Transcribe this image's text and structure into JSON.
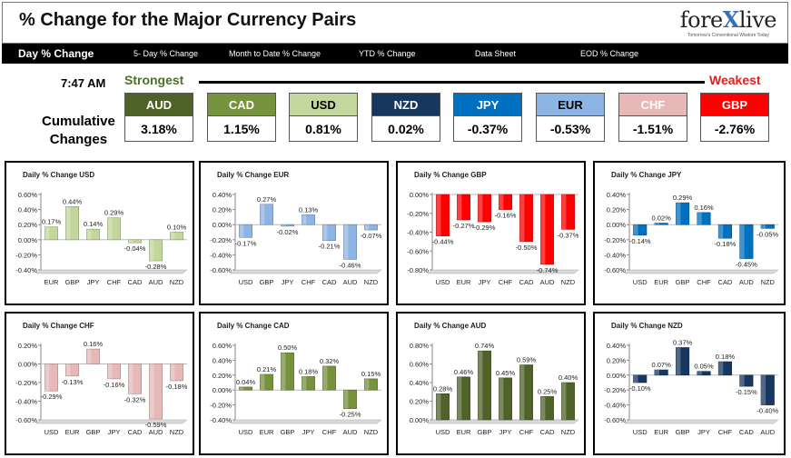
{
  "header": {
    "title": "% Change for the Major Currency Pairs",
    "logo_name": "forexlive-logo"
  },
  "nav": [
    {
      "label": "Day % Change",
      "active": true
    },
    {
      "label": "5- Day % Change",
      "active": false
    },
    {
      "label": "Month to Date % Change",
      "active": false
    },
    {
      "label": "YTD % Change",
      "active": false
    },
    {
      "label": "Data Sheet",
      "active": false
    },
    {
      "label": "EOD % Change",
      "active": false
    }
  ],
  "summary": {
    "time": "7:47 AM",
    "strongest_label": "Strongest",
    "weakest_label": "Weakest",
    "cumulative_label_1": "Cumulative",
    "cumulative_label_2": "Changes",
    "currencies": [
      {
        "code": "AUD",
        "value": "3.18%",
        "bg": "#4f6228",
        "fg": "#ffffff"
      },
      {
        "code": "CAD",
        "value": "1.15%",
        "bg": "#76923c",
        "fg": "#ffffff"
      },
      {
        "code": "USD",
        "value": "0.81%",
        "bg": "#c3d69b",
        "fg": "#000000"
      },
      {
        "code": "NZD",
        "value": "0.02%",
        "bg": "#17375e",
        "fg": "#ffffff"
      },
      {
        "code": "JPY",
        "value": "-0.37%",
        "bg": "#0070c0",
        "fg": "#ffffff"
      },
      {
        "code": "EUR",
        "value": "-0.53%",
        "bg": "#8eb4e3",
        "fg": "#000000"
      },
      {
        "code": "CHF",
        "value": "-1.51%",
        "bg": "#e6b9b8",
        "fg": "#ffffff"
      },
      {
        "code": "GBP",
        "value": "-2.76%",
        "bg": "#ff0000",
        "fg": "#ffffff"
      }
    ]
  },
  "chart_data": [
    {
      "type": "bar",
      "title": "Daily % Change USD",
      "categories": [
        "EUR",
        "GBP",
        "JPY",
        "CHF",
        "CAD",
        "AUD",
        "NZD"
      ],
      "values": [
        0.17,
        0.44,
        0.14,
        0.29,
        -0.04,
        -0.28,
        0.1
      ],
      "ticks": [
        0.6,
        0.4,
        0.2,
        0.0,
        -0.2,
        -0.4
      ],
      "ylim": [
        -0.4,
        0.6
      ],
      "color": "#c3d69b"
    },
    {
      "type": "bar",
      "title": "Daily % Change EUR",
      "categories": [
        "USD",
        "GBP",
        "JPY",
        "CHF",
        "CAD",
        "AUD",
        "NZD"
      ],
      "values": [
        -0.17,
        0.27,
        -0.02,
        0.13,
        -0.21,
        -0.46,
        -0.07
      ],
      "ticks": [
        0.4,
        0.2,
        0.0,
        -0.2,
        -0.4,
        -0.6
      ],
      "ylim": [
        -0.6,
        0.4
      ],
      "color": "#8eb4e3"
    },
    {
      "type": "bar",
      "title": "Daily % Change GBP",
      "categories": [
        "USD",
        "EUR",
        "JPY",
        "CHF",
        "CAD",
        "AUD",
        "NZD"
      ],
      "values": [
        -0.44,
        -0.27,
        -0.29,
        -0.16,
        -0.5,
        -0.74,
        -0.37
      ],
      "ticks": [
        0.0,
        -0.2,
        -0.4,
        -0.6,
        -0.8
      ],
      "ylim": [
        -0.8,
        0.0
      ],
      "color": "#ff0000"
    },
    {
      "type": "bar",
      "title": "Daily % Change JPY",
      "categories": [
        "USD",
        "EUR",
        "GBP",
        "CHF",
        "CAD",
        "AUD",
        "NZD"
      ],
      "values": [
        -0.14,
        0.02,
        0.29,
        0.16,
        -0.18,
        -0.45,
        -0.05
      ],
      "ticks": [
        0.4,
        0.2,
        0.0,
        -0.2,
        -0.4,
        -0.6
      ],
      "ylim": [
        -0.6,
        0.4
      ],
      "color": "#0070c0"
    },
    {
      "type": "bar",
      "title": "Daily % Change CHF",
      "categories": [
        "USD",
        "EUR",
        "GBP",
        "JPY",
        "CAD",
        "AUD",
        "NZD"
      ],
      "values": [
        -0.29,
        -0.13,
        0.16,
        -0.16,
        -0.32,
        -0.59,
        -0.18
      ],
      "value_labels": [
        "-0.29%",
        "-0.13%",
        "0.16%",
        "-0.16%",
        "-0.32%",
        "-0.59%",
        "-0.18%"
      ],
      "ticks": [
        0.2,
        0.0,
        -0.2,
        -0.4,
        -0.6
      ],
      "ylim": [
        -0.6,
        0.2
      ],
      "color": "#e6b9b8"
    },
    {
      "type": "bar",
      "title": "Daily % Change CAD",
      "categories": [
        "USD",
        "EUR",
        "GBP",
        "JPY",
        "CHF",
        "AUD",
        "NZD"
      ],
      "values": [
        0.04,
        0.21,
        0.5,
        0.18,
        0.32,
        -0.25,
        0.15
      ],
      "ticks": [
        0.6,
        0.4,
        0.2,
        0.0,
        -0.2,
        -0.4
      ],
      "ylim": [
        -0.4,
        0.6
      ],
      "color": "#76923c"
    },
    {
      "type": "bar",
      "title": "Daily % Change AUD",
      "categories": [
        "USD",
        "EUR",
        "GBP",
        "JPY",
        "CHF",
        "CAD",
        "NZD"
      ],
      "values": [
        0.28,
        0.46,
        0.74,
        0.45,
        0.59,
        0.25,
        0.4
      ],
      "ticks": [
        0.8,
        0.6,
        0.4,
        0.2,
        0.0
      ],
      "ylim": [
        0.0,
        0.8
      ],
      "color": "#4f6228"
    },
    {
      "type": "bar",
      "title": "Daily % Change NZD",
      "categories": [
        "USD",
        "EUR",
        "GBP",
        "JPY",
        "CHF",
        "CAD",
        "AUD"
      ],
      "values": [
        -0.1,
        0.07,
        0.37,
        0.05,
        0.18,
        -0.15,
        -0.4
      ],
      "ticks": [
        0.4,
        0.2,
        0.0,
        -0.2,
        -0.4,
        -0.6
      ],
      "ylim": [
        -0.6,
        0.4
      ],
      "color": "#17375e"
    }
  ]
}
